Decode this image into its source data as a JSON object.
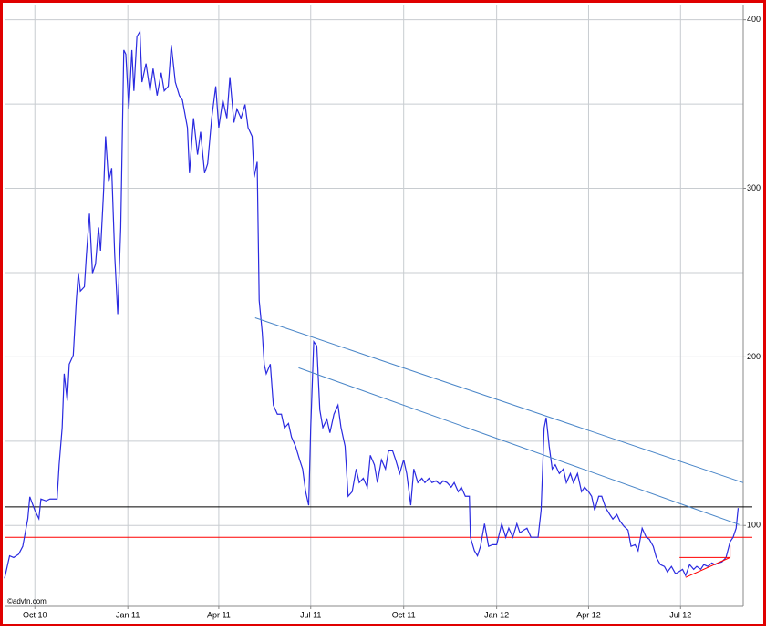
{
  "chart_data": {
    "type": "line",
    "watermark": "©advfn.com",
    "x": [
      -30,
      -25,
      -21,
      -16,
      -12,
      -7,
      -5,
      0,
      4,
      6,
      11,
      15,
      22,
      24,
      27,
      29,
      32,
      34,
      38,
      41,
      43,
      45,
      49,
      51,
      54,
      57,
      60,
      63,
      65,
      68,
      70,
      73,
      76,
      79,
      82,
      85,
      88,
      90,
      93,
      96,
      98,
      101,
      104,
      106,
      110,
      114,
      117,
      121,
      125,
      128,
      132,
      135,
      139,
      143,
      146,
      151,
      153,
      157,
      161,
      164,
      168,
      171,
      175,
      179,
      182,
      186,
      190,
      193,
      197,
      200,
      204,
      208,
      211,
      215,
      217,
      220,
      222,
      225,
      227,
      229,
      233,
      236,
      240,
      244,
      247,
      251,
      254,
      258,
      262,
      265,
      268,
      271,
      273,
      276,
      279,
      282,
      285,
      289,
      292,
      296,
      300,
      303,
      307,
      310,
      314,
      318,
      321,
      325,
      329,
      332,
      336,
      339,
      343,
      347,
      350,
      354,
      357,
      361,
      365,
      368,
      372,
      375,
      379,
      383,
      386,
      390,
      393,
      397,
      401,
      404,
      408,
      412,
      415,
      419,
      422,
      426,
      430,
      431,
      435,
      438,
      441,
      445,
      449,
      453,
      457,
      462,
      466,
      469,
      473,
      477,
      480,
      484,
      487,
      491,
      495,
      498,
      501,
      504,
      506,
      509,
      512,
      515,
      519,
      523,
      526,
      530,
      533,
      537,
      541,
      544,
      548,
      551,
      554,
      558,
      561,
      565,
      569,
      572,
      576,
      579,
      583,
      587,
      590,
      594,
      597,
      601,
      605,
      608,
      612,
      615,
      619,
      623,
      626,
      630,
      634,
      637,
      641,
      644,
      648,
      652,
      655,
      659,
      662,
      666,
      670,
      673,
      677,
      680,
      684,
      688,
      691,
      694,
      696
    ],
    "values": [
      68.6,
      82,
      81,
      83,
      87.6,
      104,
      117,
      109,
      104,
      115.7,
      114.6,
      115.7,
      115.7,
      136,
      158,
      190,
      174,
      195.7,
      201,
      233.5,
      249.7,
      239,
      241.6,
      260.5,
      285,
      249.7,
      255,
      276.8,
      263,
      298,
      330.8,
      303.8,
      312,
      260.5,
      225.4,
      276.8,
      382,
      379.5,
      347,
      382,
      357.8,
      390,
      393,
      363,
      374,
      357.8,
      371,
      355,
      368.6,
      357.8,
      360.5,
      385,
      363,
      355,
      352.4,
      336,
      309,
      341.6,
      320,
      333.5,
      309,
      314.6,
      341.6,
      360.5,
      336,
      352.4,
      341.6,
      366,
      339,
      347,
      341.6,
      349.7,
      336,
      330.8,
      306.5,
      315.7,
      233.5,
      214.6,
      195.7,
      190,
      195.7,
      171.4,
      166,
      166,
      157.8,
      160.5,
      152.4,
      147,
      139,
      133.5,
      120,
      112,
      158,
      209,
      206.5,
      168.6,
      158,
      163,
      155,
      166,
      171.4,
      158,
      147,
      117.3,
      120,
      133.5,
      125.4,
      128,
      122.7,
      141.6,
      136,
      125.4,
      139,
      133.5,
      144.3,
      144.3,
      139,
      130.8,
      139,
      130.8,
      112,
      133.5,
      125.4,
      128,
      125.4,
      128,
      125.4,
      126.5,
      124.3,
      126.5,
      125.4,
      122.7,
      125.4,
      120,
      122.7,
      117.3,
      117.3,
      93,
      85,
      82,
      87.6,
      101,
      87.6,
      88.6,
      88.6,
      101,
      93,
      98.4,
      93,
      101,
      95.7,
      97.3,
      98.4,
      93,
      93,
      93,
      109,
      157.8,
      164,
      147,
      133.5,
      136,
      130.8,
      133.5,
      125.4,
      130.8,
      125.4,
      130.8,
      120,
      122.7,
      120,
      117.3,
      109,
      117.3,
      117.3,
      110.3,
      106.5,
      103.8,
      106.5,
      102.7,
      99.5,
      97.3,
      87.6,
      88.6,
      85,
      98.4,
      93,
      91.9,
      87.6,
      81,
      76.8,
      75.7,
      72.4,
      75.7,
      71.4,
      72.4,
      74,
      70.3,
      76.8,
      74,
      75.7,
      74,
      76.8,
      75.7,
      77.8,
      76.8,
      77.8,
      78.4,
      81,
      90.3,
      93,
      98.4,
      110.3
    ],
    "color": "#2a2ae0",
    "xlim": [
      -30,
      701
    ],
    "ylim": [
      52,
      409
    ],
    "xticks": [
      {
        "value": 0,
        "label": "Oct 10"
      },
      {
        "value": 92,
        "label": "Jan 11"
      },
      {
        "value": 182,
        "label": "Apr 11"
      },
      {
        "value": 273,
        "label": "Jul 11"
      },
      {
        "value": 365,
        "label": "Oct 11"
      },
      {
        "value": 457,
        "label": "Jan 12"
      },
      {
        "value": 548,
        "label": "Apr 12"
      },
      {
        "value": 639,
        "label": "Jul 12"
      }
    ],
    "yticks": [
      100,
      200,
      300,
      400
    ],
    "ygrid": [
      150,
      250,
      350
    ],
    "grid": true,
    "hlines": [
      {
        "value": 111,
        "color": "#000000"
      },
      {
        "value": 93,
        "color": "#ff0000"
      }
    ],
    "trend_lines": [
      {
        "color": "#4a86c8",
        "x": [
          218,
          701
        ],
        "values": [
          223.2,
          125.4
        ]
      },
      {
        "color": "#4a86c8",
        "x": [
          261,
          697
        ],
        "values": [
          193.5,
          100.5
        ]
      },
      {
        "color": "#ff0000",
        "x": [
          638,
          688
        ],
        "values": [
          81,
          81
        ]
      },
      {
        "color": "#ff0000",
        "x": [
          644,
          688
        ],
        "values": [
          69.2,
          81
        ]
      },
      {
        "color": "#ff0000",
        "x": [
          688,
          688
        ],
        "values": [
          81,
          88
        ]
      }
    ]
  }
}
